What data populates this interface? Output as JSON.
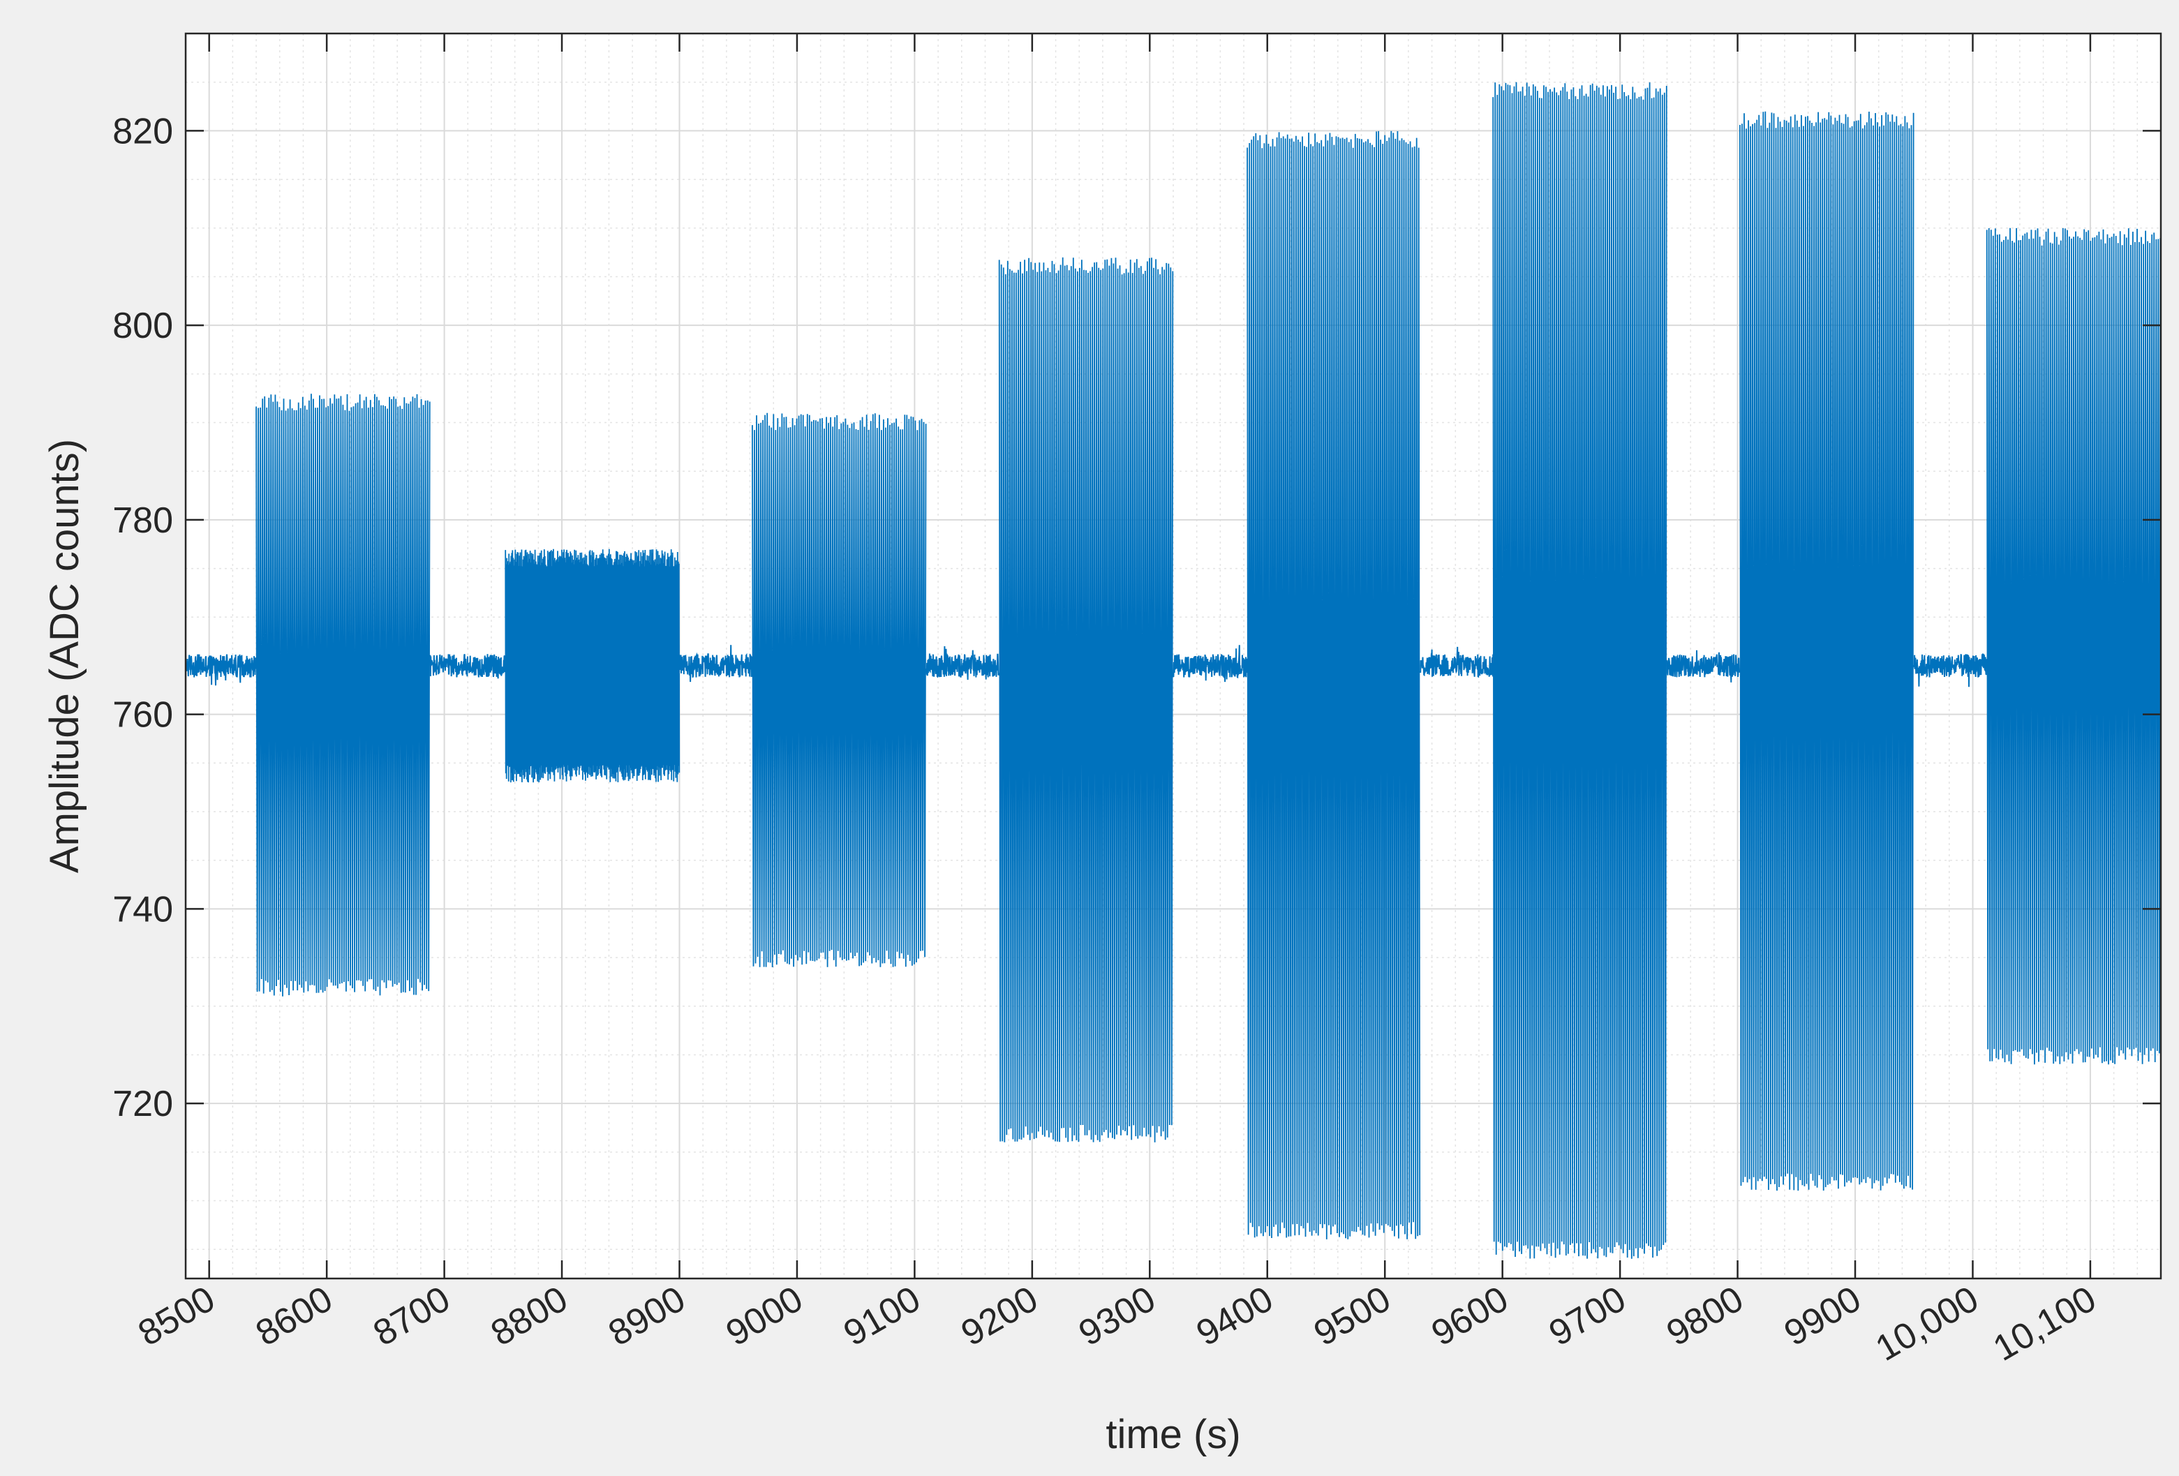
{
  "chart_data": {
    "type": "line",
    "title": "",
    "xlabel": "time (s)",
    "ylabel": "Amplitude (ADC counts)",
    "xlim": [
      8480,
      10160
    ],
    "ylim": [
      702,
      830
    ],
    "x_ticks": [
      8500,
      8600,
      8700,
      8800,
      8900,
      9000,
      9100,
      9200,
      9300,
      9400,
      9500,
      9600,
      9700,
      9800,
      9900,
      10000,
      10100
    ],
    "x_tick_labels": [
      "8500",
      "8600",
      "8700",
      "8800",
      "8900",
      "9000",
      "9100",
      "9200",
      "9300",
      "9400",
      "9500",
      "9600",
      "9700",
      "9800",
      "9900",
      "10,000",
      "10,100"
    ],
    "y_ticks": [
      720,
      740,
      760,
      780,
      800,
      820
    ],
    "y_tick_labels": [
      "720",
      "740",
      "760",
      "780",
      "800",
      "820"
    ],
    "grid": true,
    "minor_grid": true,
    "line_color": "#0072bd",
    "baseline": 765,
    "baseline_noise": 1.2,
    "bursts": [
      {
        "start": 8540,
        "end": 8688,
        "min": 731,
        "max": 793
      },
      {
        "start": 8752,
        "end": 8900,
        "min": 753,
        "max": 777
      },
      {
        "start": 8962,
        "end": 9110,
        "min": 734,
        "max": 791
      },
      {
        "start": 9172,
        "end": 9320,
        "min": 716,
        "max": 807
      },
      {
        "start": 9383,
        "end": 9530,
        "min": 706,
        "max": 820
      },
      {
        "start": 9592,
        "end": 9740,
        "min": 704,
        "max": 825
      },
      {
        "start": 9802,
        "end": 9950,
        "min": 711,
        "max": 822
      },
      {
        "start": 10012,
        "end": 10160,
        "min": 724,
        "max": 810
      }
    ]
  }
}
